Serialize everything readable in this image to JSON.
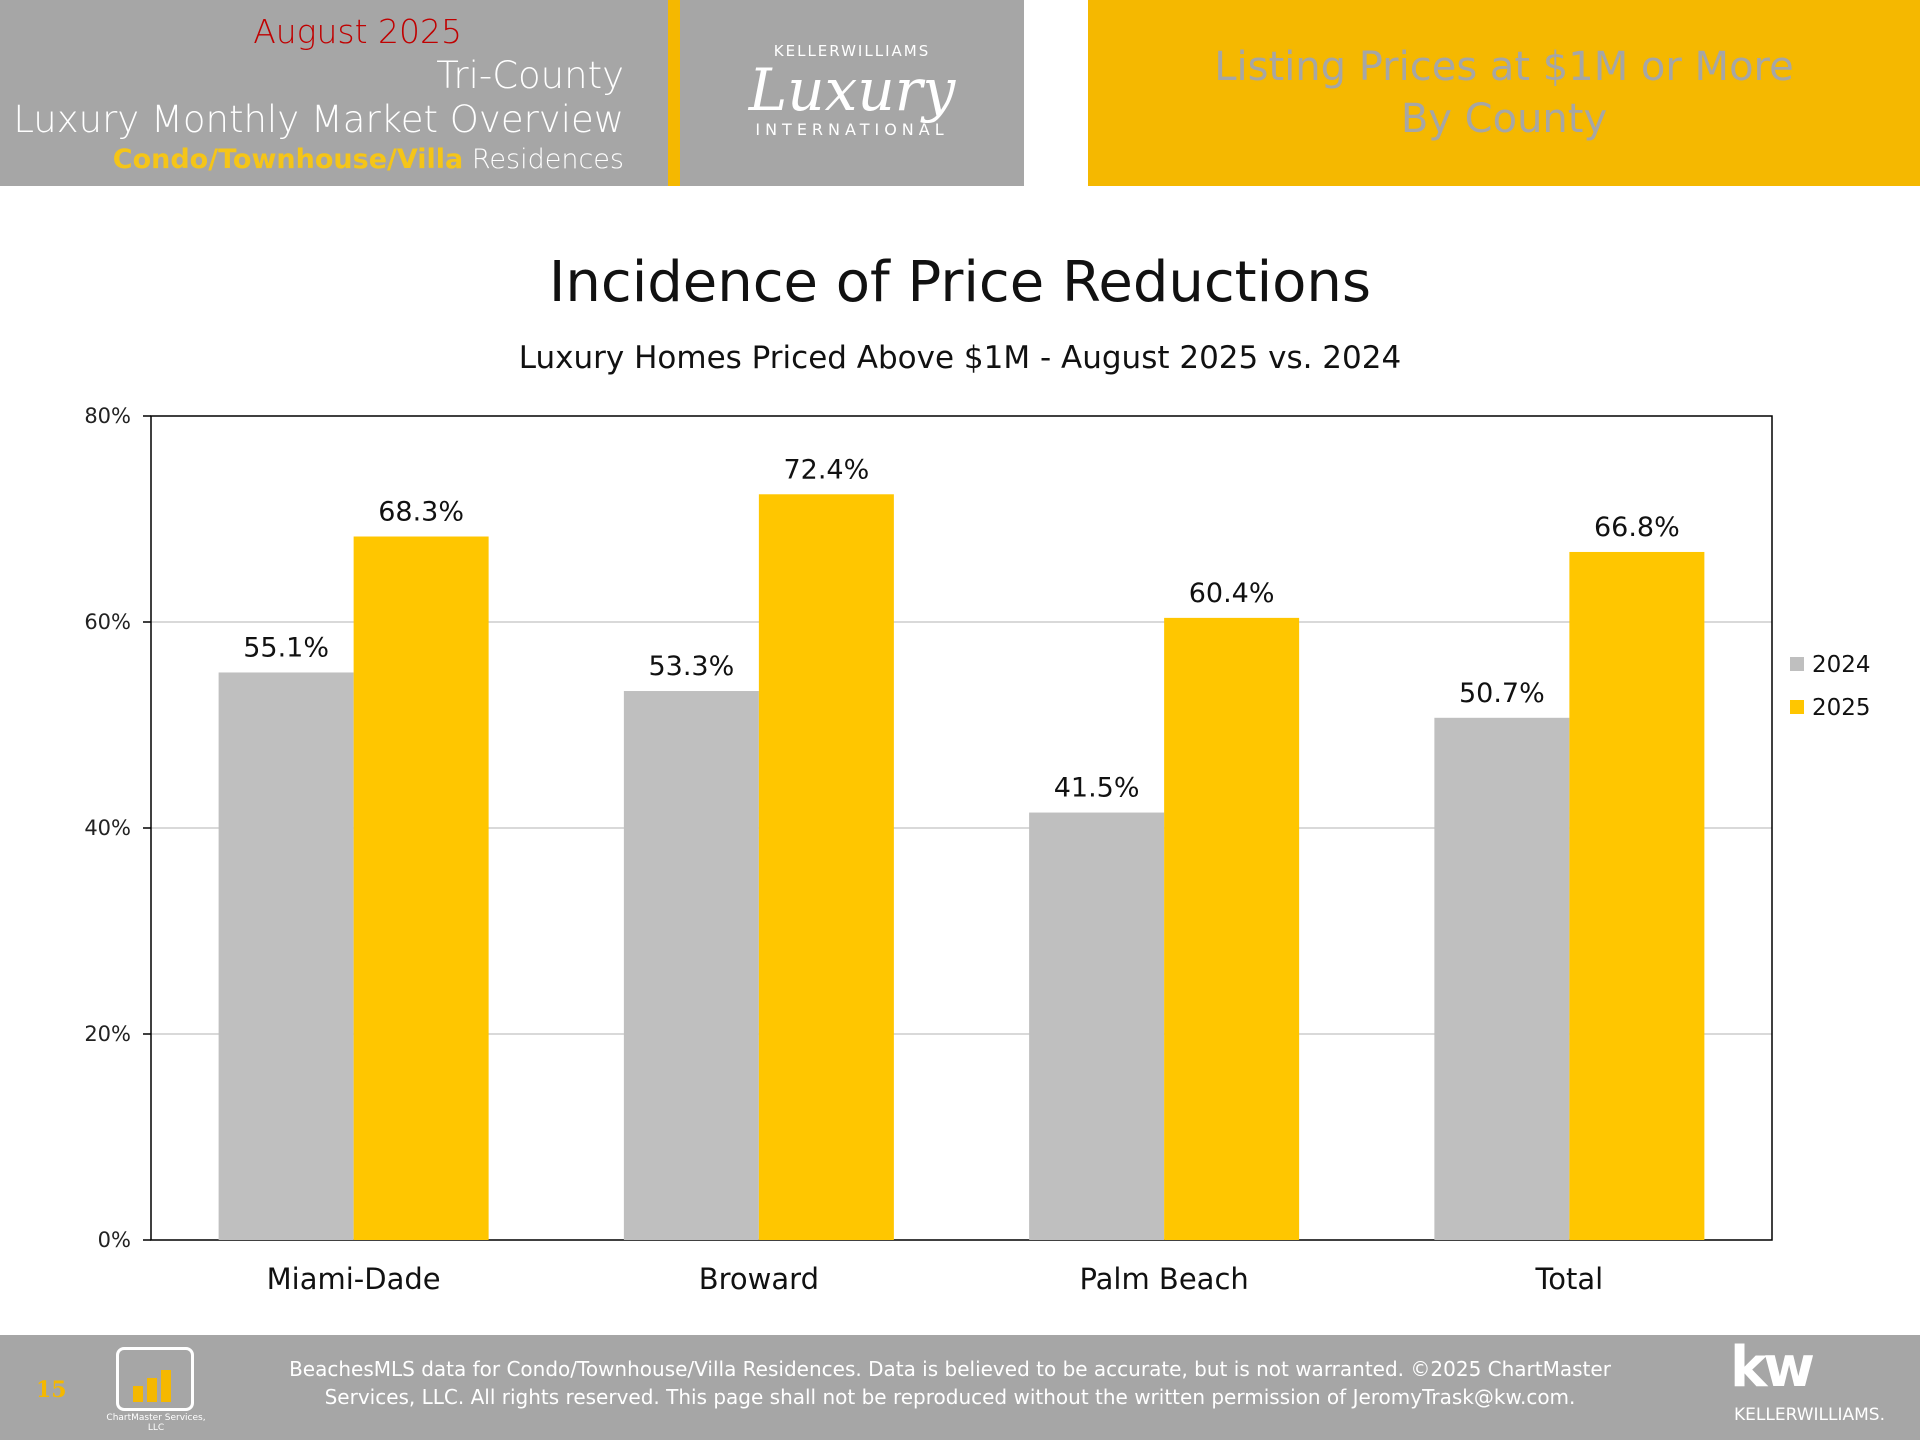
{
  "header": {
    "date": "August 2025",
    "region": "Tri-County",
    "report": "Luxury Monthly Market Overview",
    "segment_highlight": "Condo/Townhouse/Villa",
    "segment_rest": "Residences",
    "logo_top": "KELLERWILLIAMS",
    "logo_main": "Luxury",
    "logo_bottom": "INTERNATIONAL",
    "right_line1": "Listing Prices at $1M or More",
    "right_line2": "By County"
  },
  "chart_data": {
    "type": "bar",
    "title": "Incidence of Price Reductions",
    "subtitle": "Luxury Homes Priced Above $1M - August 2025 vs. 2024",
    "categories": [
      "Miami-Dade",
      "Broward",
      "Palm Beach",
      "Total"
    ],
    "series": [
      {
        "name": "2024",
        "color": "#bfbfbf",
        "values": [
          55.1,
          53.3,
          41.5,
          50.7
        ],
        "labels": [
          "55.1%",
          "53.3%",
          "41.5%",
          "50.7%"
        ]
      },
      {
        "name": "2025",
        "color": "#ffc600",
        "values": [
          68.3,
          72.4,
          60.4,
          66.8
        ],
        "labels": [
          "68.3%",
          "72.4%",
          "60.4%",
          "66.8%"
        ]
      }
    ],
    "ylim": [
      0,
      80
    ],
    "yticks": [
      "0%",
      "20%",
      "40%",
      "60%",
      "80%"
    ],
    "ytick_values": [
      0,
      20,
      40,
      60,
      80
    ],
    "grid": true,
    "legend": "right"
  },
  "footer": {
    "page": "15",
    "line1": "BeachesMLS data for Condo/Townhouse/Villa Residences.  Data is believed to be accurate, but is not warranted.  ©2025  ChartMaster",
    "line2": "Services, LLC.  All rights reserved. This page shall not be reproduced without the written permission of JeromyTrask@kw.com.",
    "cm_logo": "ChartMaster Services, LLC",
    "kw_logo": "kw",
    "kw_name": "KELLERWILLIAMS."
  }
}
